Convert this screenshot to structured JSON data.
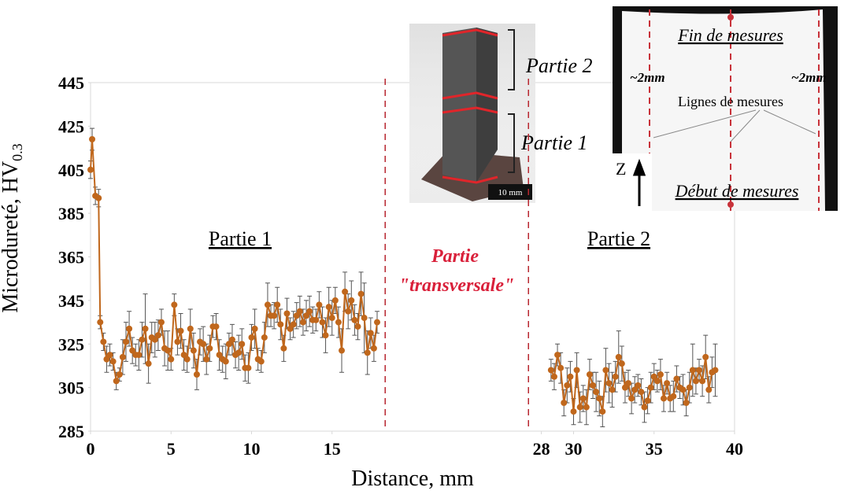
{
  "chart_data": {
    "type": "scatter-line-errorbar",
    "y_label": "Microdureté, HV",
    "y_label_sub": "0.3",
    "x_label": "Distance, mm",
    "xlim": [
      0,
      40
    ],
    "ylim": [
      285,
      445
    ],
    "xticks": [
      0,
      5,
      10,
      15,
      28,
      30,
      35,
      40
    ],
    "yticks": [
      285,
      305,
      325,
      345,
      365,
      385,
      405,
      425,
      445
    ],
    "grid": false,
    "series": [
      {
        "color": "#c0671c",
        "x": [
          0,
          0.1,
          0.3,
          0.5,
          0.6,
          0.8,
          1.0,
          1.2,
          1.4,
          1.6,
          1.8,
          2.0,
          2.2,
          2.4,
          2.6,
          2.8,
          3.0,
          3.2,
          3.4,
          3.6,
          3.8,
          4.0,
          4.2,
          4.4,
          4.6,
          4.8,
          5.0,
          5.2,
          5.4,
          5.6,
          5.8,
          6.0,
          6.2,
          6.4,
          6.6,
          6.8,
          7.0,
          7.2,
          7.4,
          7.6,
          7.8,
          8.0,
          8.2,
          8.4,
          8.6,
          8.8,
          9.0,
          9.2,
          9.4,
          9.6,
          9.8,
          10.0,
          10.2,
          10.4,
          10.6,
          10.8,
          11.0,
          11.2,
          11.4,
          11.6,
          11.8,
          12.0,
          12.2,
          12.4,
          12.6,
          12.8,
          13.0,
          13.2,
          13.4,
          13.6,
          13.8,
          14.0,
          14.2,
          14.4,
          14.6,
          14.8,
          15.0,
          15.2,
          15.4,
          15.6,
          15.8,
          16.0,
          16.2,
          16.4,
          16.6,
          16.8,
          17.0,
          17.2,
          17.4,
          17.6,
          17.8
        ],
        "values": [
          405,
          419,
          393,
          392,
          335,
          326,
          318,
          320,
          317,
          308,
          311,
          319,
          326,
          332,
          322,
          320,
          320,
          327,
          332,
          316,
          328,
          327,
          329,
          335,
          323,
          322,
          318,
          343,
          326,
          331,
          320,
          318,
          332,
          322,
          311,
          326,
          325,
          318,
          323,
          333,
          333,
          320,
          318,
          317,
          325,
          327,
          320,
          321,
          325,
          314,
          314,
          328,
          332,
          318,
          317,
          328,
          343,
          338,
          338,
          343,
          334,
          323,
          339,
          332,
          334,
          338,
          340,
          335,
          338,
          340,
          336,
          336,
          343,
          335,
          329,
          342,
          337,
          345,
          335,
          322,
          349,
          340,
          345,
          336,
          333,
          348,
          337,
          321,
          330,
          323,
          335
        ],
        "errors": [
          4,
          5,
          4,
          4,
          3,
          4,
          6,
          5,
          4,
          4,
          3,
          8,
          9,
          8,
          6,
          5,
          7,
          8,
          16,
          9,
          7,
          8,
          7,
          6,
          8,
          9,
          5,
          5,
          6,
          8,
          7,
          6,
          9,
          8,
          7,
          6,
          8,
          7,
          6,
          5,
          6,
          7,
          6,
          8,
          5,
          7,
          6,
          8,
          7,
          6,
          7,
          6,
          9,
          5,
          5,
          7,
          10,
          5,
          6,
          8,
          7,
          6,
          7,
          5,
          6,
          6,
          7,
          6,
          7,
          7,
          6,
          5,
          6,
          7,
          8,
          9,
          8,
          6,
          7,
          10,
          9,
          8,
          9,
          7,
          6,
          10,
          16,
          10,
          7,
          6,
          5
        ]
      },
      {
        "color": "#c0671c",
        "x": [
          28.6,
          28.8,
          29.0,
          29.2,
          29.4,
          29.6,
          29.8,
          30.0,
          30.2,
          30.4,
          30.6,
          30.8,
          31.0,
          31.2,
          31.4,
          31.6,
          31.8,
          32.0,
          32.2,
          32.4,
          32.6,
          32.8,
          33.0,
          33.2,
          33.4,
          33.6,
          33.8,
          34.0,
          34.2,
          34.4,
          34.6,
          34.8,
          35.0,
          35.2,
          35.4,
          35.6,
          35.8,
          36.0,
          36.2,
          36.4,
          36.6,
          36.8,
          37.0,
          37.2,
          37.4,
          37.6,
          37.8,
          38.0,
          38.2,
          38.4,
          38.6,
          38.8
        ],
        "values": [
          313,
          310,
          320,
          314,
          298,
          306,
          310,
          294,
          313,
          296,
          300,
          296,
          311,
          306,
          303,
          300,
          294,
          313,
          307,
          304,
          310,
          319,
          316,
          305,
          307,
          300,
          304,
          306,
          303,
          296,
          299,
          305,
          310,
          308,
          311,
          300,
          307,
          300,
          301,
          309,
          305,
          304,
          298,
          305,
          313,
          308,
          313,
          308,
          319,
          304,
          312,
          313
        ],
        "errors": [
          5,
          6,
          5,
          7,
          6,
          8,
          7,
          6,
          8,
          7,
          6,
          8,
          7,
          6,
          9,
          8,
          7,
          10,
          9,
          8,
          7,
          12,
          8,
          7,
          6,
          7,
          6,
          5,
          6,
          7,
          6,
          7,
          6,
          5,
          7,
          6,
          5,
          6,
          7,
          6,
          5,
          7,
          6,
          7,
          12,
          6,
          5,
          7,
          10,
          6,
          7,
          12
        ]
      }
    ],
    "vlines": [
      18.3,
      27.2
    ],
    "annotations": {
      "partie1": "Partie 1",
      "partie2": "Partie 2",
      "transversale_1": "Partie",
      "transversale_2": "\"transversale\""
    },
    "inset_photo": {
      "partie2": "Partie 2",
      "partie1": "Partie 1",
      "scale": "10 mm"
    },
    "inset_section": {
      "fin": "Fin de mesures",
      "left_offset": "~2mm",
      "right_offset": "~2mm",
      "lignes": "Lignes de mesures",
      "axis": "Z",
      "debut": "Début de mesures"
    }
  }
}
